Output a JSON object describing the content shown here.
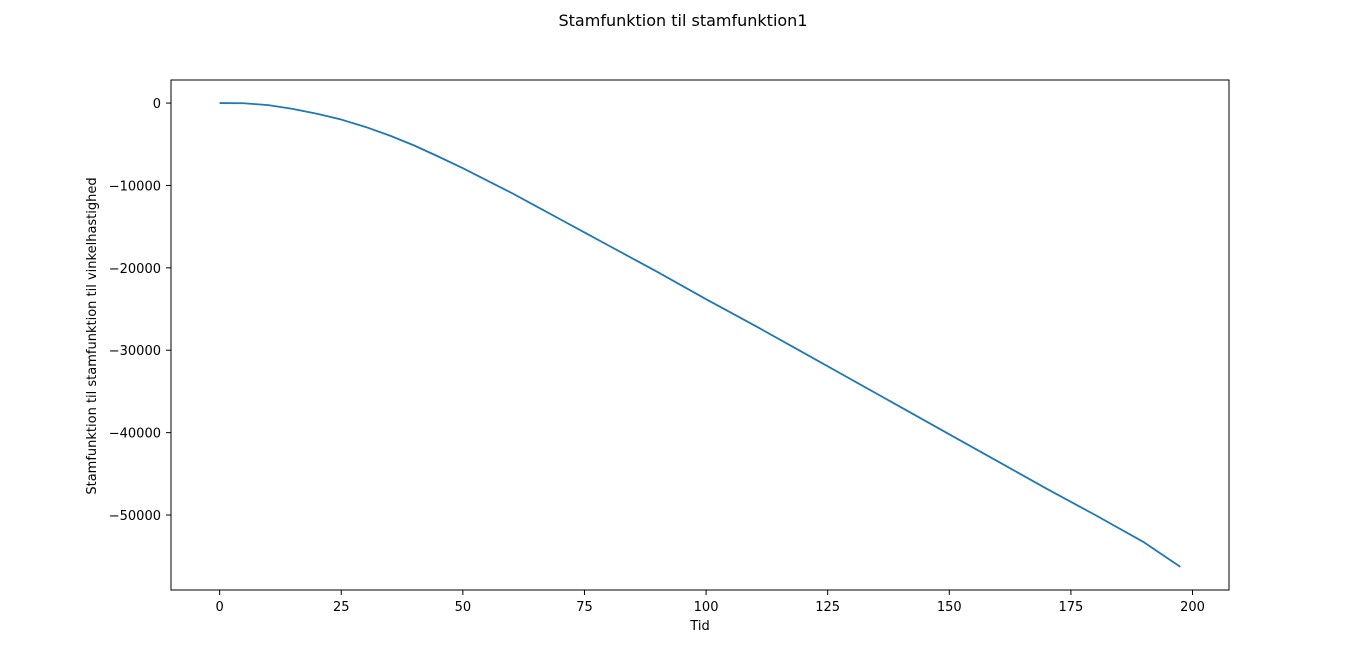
{
  "chart_data": {
    "type": "line",
    "title": "Stamfunktion til stamfunktion1",
    "xlabel": "Tid",
    "ylabel": "Stamfunktion til stamfunktion til vinkelhastighed",
    "xlim": [
      -10,
      207.5
    ],
    "ylim": [
      -59100,
      2800
    ],
    "xticks": [
      0,
      25,
      50,
      75,
      100,
      125,
      150,
      175,
      200
    ],
    "xtick_labels": [
      "0",
      "25",
      "50",
      "75",
      "100",
      "125",
      "150",
      "175",
      "200"
    ],
    "yticks": [
      0,
      -10000,
      -20000,
      -30000,
      -40000,
      -50000
    ],
    "ytick_labels": [
      "0",
      "−10000",
      "−20000",
      "−30000",
      "−40000",
      "−50000"
    ],
    "grid": false,
    "series": [
      {
        "color": "#1f77b4",
        "x": [
          0,
          5,
          10,
          15,
          20,
          25,
          30,
          35,
          40,
          45,
          50,
          55,
          60,
          65,
          70,
          75,
          80,
          90,
          100,
          110,
          120,
          130,
          140,
          150,
          160,
          170,
          180,
          190,
          197.5
        ],
        "y": [
          0,
          -20,
          -250,
          -700,
          -1300,
          -2000,
          -2900,
          -3950,
          -5150,
          -6500,
          -7900,
          -9400,
          -10900,
          -12500,
          -14100,
          -15700,
          -17300,
          -20500,
          -23800,
          -27000,
          -30300,
          -33600,
          -36900,
          -40200,
          -43500,
          -46800,
          -50000,
          -53300,
          -56300
        ]
      }
    ]
  }
}
